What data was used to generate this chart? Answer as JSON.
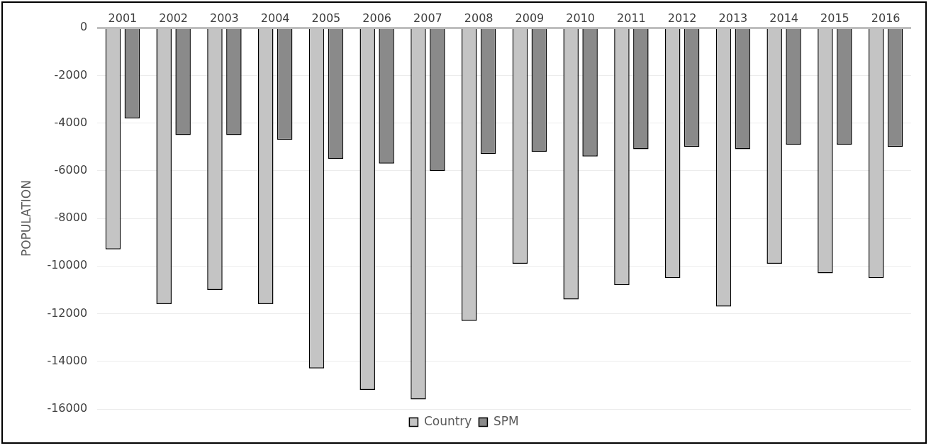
{
  "chart_data": {
    "type": "bar",
    "ylabel": "POPULATION",
    "categories": [
      "2001",
      "2002",
      "2003",
      "2004",
      "2005",
      "2006",
      "2007",
      "2008",
      "2009",
      "2010",
      "2011",
      "2012",
      "2013",
      "2014",
      "2015",
      "2016"
    ],
    "series": [
      {
        "name": "Country",
        "color": "#c4c4c4",
        "values": [
          -9300,
          -11600,
          -11000,
          -11600,
          -14300,
          -15200,
          -15600,
          -12300,
          -9900,
          -11400,
          -10800,
          -10500,
          -11700,
          -9900,
          -10300,
          -10500
        ]
      },
      {
        "name": "SPM",
        "color": "#8a8a8a",
        "values": [
          -3800,
          -4500,
          -4500,
          -4700,
          -5500,
          -5700,
          -6000,
          -5300,
          -5200,
          -5400,
          -5100,
          -5000,
          -5100,
          -4900,
          -4900,
          -5000
        ]
      }
    ],
    "ylim": [
      -16000,
      0
    ],
    "yticks": [
      0,
      -2000,
      -4000,
      -6000,
      -8000,
      -10000,
      -12000,
      -14000,
      -16000
    ],
    "grid": "y",
    "legend": "bottom"
  }
}
